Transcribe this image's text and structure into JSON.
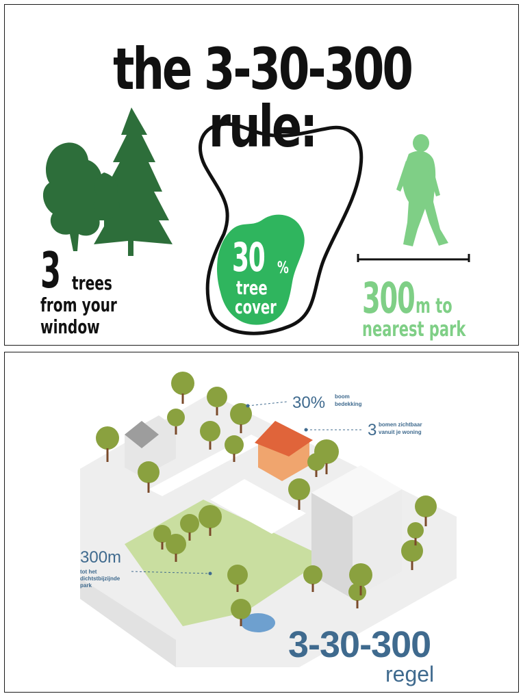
{
  "top_poster": {
    "title": "the 3-30-300 rule:",
    "section_trees": {
      "number": "3",
      "word": "trees",
      "line2": "from your",
      "line3": "window"
    },
    "section_cover": {
      "number": "30",
      "percent": "%",
      "line1": "tree",
      "line2": "cover"
    },
    "section_park": {
      "number": "300",
      "unit": "m to",
      "line2": "nearest park"
    }
  },
  "bottom_illustration": {
    "callout_cover": {
      "number": "30%",
      "line1": "boom",
      "line2": "bedekking"
    },
    "callout_trees": {
      "number": "3",
      "line1": "bomen zichtbaar",
      "line2": "vanuit je woning"
    },
    "callout_park": {
      "number": "300m",
      "line1": "tot het",
      "line2": "dichtstbijzijnde",
      "line3": "park"
    },
    "big_title": "3-30-300",
    "subtitle": "regel"
  },
  "colors": {
    "dark_green": "#2d6e3a",
    "bright_green": "#2fb55e",
    "light_green": "#7fcf86",
    "blue_text": "#3f6a8e",
    "house_orange": "#e0643a"
  }
}
